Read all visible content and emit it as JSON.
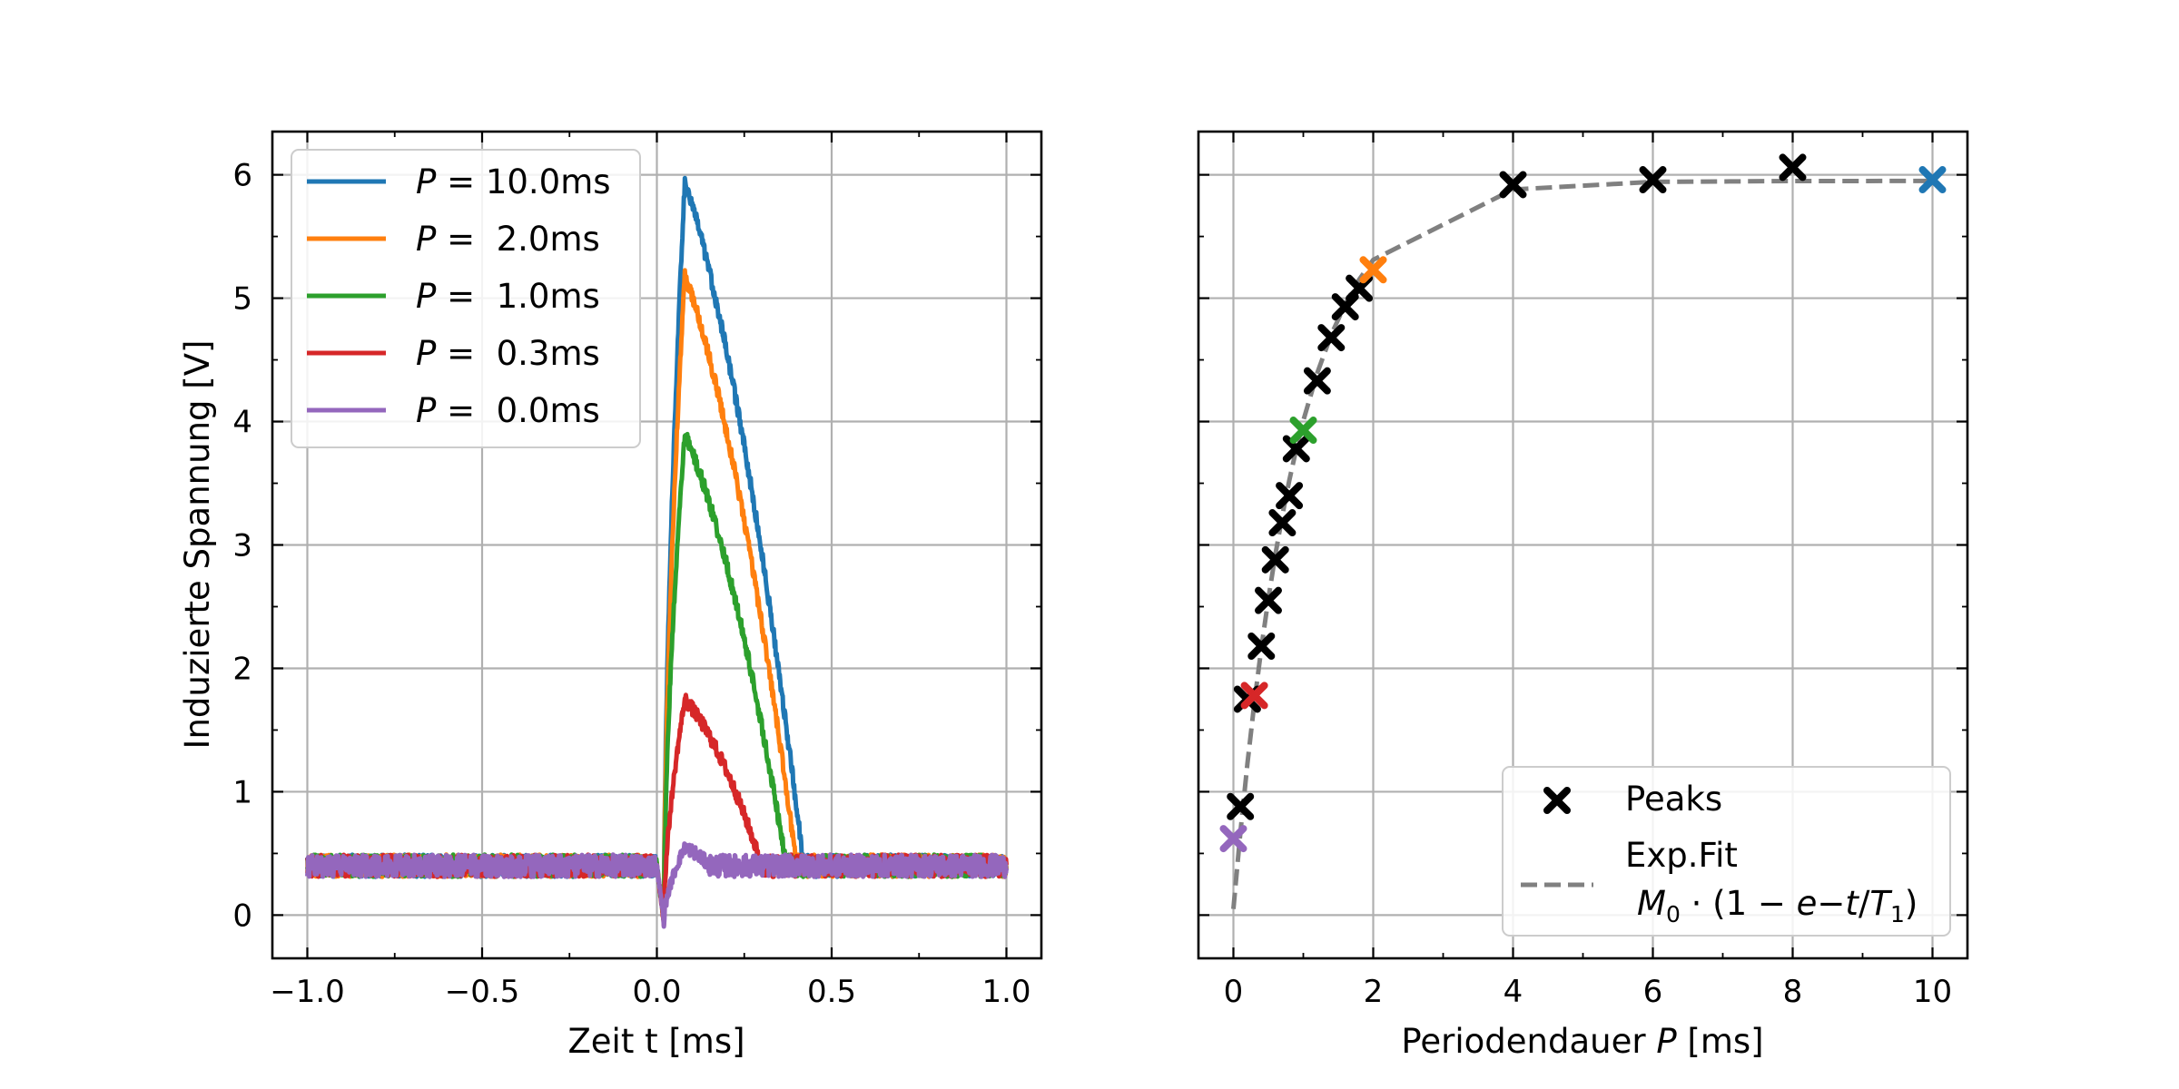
{
  "colors": {
    "blue": "#1f77b4",
    "orange": "#ff7f0e",
    "green": "#2ca02c",
    "red": "#d62728",
    "purple": "#9467bd",
    "gray": "#808080",
    "black": "#000000",
    "grid": "#b0b0b0"
  },
  "chart_data": [
    {
      "type": "line",
      "xlabel": "Zeit t [ms]",
      "ylabel": "Induzierte Spannung [V]",
      "xlim": [
        -1.1,
        1.1
      ],
      "ylim": [
        -0.35,
        6.35
      ],
      "xticks": [
        -1.0,
        -0.5,
        0.0,
        0.5,
        1.0
      ],
      "xtick_labels": [
        "−1.0",
        "−0.5",
        "0.0",
        "0.5",
        "1.0"
      ],
      "yticks": [
        0,
        1,
        2,
        3,
        4,
        5,
        6
      ],
      "ytick_labels": [
        "0",
        "1",
        "2",
        "3",
        "4",
        "5",
        "6"
      ],
      "grid": true,
      "legend_position": "top-left",
      "series": [
        {
          "name": "P = 10.0ms",
          "legend_math": "P",
          "legend_rest": " = 10.0ms",
          "color": "#1f77b4",
          "baseline": 0.4,
          "dip": -0.05,
          "peak": 5.95,
          "t_peak": 0.08,
          "t_end": 0.42
        },
        {
          "name": "P =  2.0ms",
          "legend_math": "P",
          "legend_rest": " =  2.0ms",
          "color": "#ff7f0e",
          "baseline": 0.4,
          "dip": -0.05,
          "peak": 5.2,
          "t_peak": 0.08,
          "t_end": 0.4
        },
        {
          "name": "P =  1.0ms",
          "legend_math": "P",
          "legend_rest": " =  1.0ms",
          "color": "#2ca02c",
          "baseline": 0.4,
          "dip": -0.05,
          "peak": 3.9,
          "t_peak": 0.08,
          "t_end": 0.37
        },
        {
          "name": "P =  0.3ms",
          "legend_math": "P",
          "legend_rest": " =  0.3ms",
          "color": "#d62728",
          "baseline": 0.4,
          "dip": -0.05,
          "peak": 1.75,
          "t_peak": 0.08,
          "t_end": 0.3
        },
        {
          "name": "P =  0.0ms",
          "legend_math": "P",
          "legend_rest": " =  0.0ms",
          "color": "#9467bd",
          "baseline": 0.4,
          "dip": -0.05,
          "peak": 0.55,
          "t_peak": 0.08,
          "t_end": 0.15
        }
      ]
    },
    {
      "type": "scatter",
      "xlabel_text": "Periodendauer ",
      "xlabel_math": "P",
      "xlabel_unit": " [ms]",
      "xlim": [
        -0.5,
        10.5
      ],
      "ylim": [
        -0.35,
        6.35
      ],
      "xticks": [
        0,
        2,
        4,
        6,
        8,
        10
      ],
      "xtick_labels": [
        "0",
        "2",
        "4",
        "6",
        "8",
        "10"
      ],
      "yticks": [
        0,
        1,
        2,
        3,
        4,
        5,
        6
      ],
      "grid": true,
      "legend_position": "bottom-right",
      "peaks": {
        "name": "Peaks",
        "x": [
          0.0,
          0.1,
          0.2,
          0.3,
          0.4,
          0.5,
          0.6,
          0.7,
          0.8,
          0.9,
          1.0,
          1.2,
          1.4,
          1.6,
          1.8,
          2.0,
          4.0,
          6.0,
          8.0,
          10.0
        ],
        "y": [
          0.62,
          0.88,
          1.75,
          1.78,
          2.18,
          2.55,
          2.88,
          3.18,
          3.4,
          3.78,
          3.93,
          4.33,
          4.68,
          4.93,
          5.08,
          5.23,
          5.92,
          5.96,
          6.06,
          5.96
        ],
        "colors": [
          "#9467bd",
          "#000000",
          "#000000",
          "#d62728",
          "#000000",
          "#000000",
          "#000000",
          "#000000",
          "#000000",
          "#000000",
          "#2ca02c",
          "#000000",
          "#000000",
          "#000000",
          "#000000",
          "#ff7f0e",
          "#000000",
          "#000000",
          "#000000",
          "#1f77b4"
        ]
      },
      "fit": {
        "name_line1": "Exp.Fit",
        "name_line2": "M₀ · (1 − e−t/T₁)",
        "formula_parts": [
          "M",
          "0",
          " · (1 − ",
          "e",
          "−",
          "t",
          "/",
          "T",
          "1",
          ")"
        ],
        "M0": 5.95,
        "T1": 0.9,
        "offset": 0.05,
        "x_samples": [
          0.0,
          0.1,
          0.2,
          0.3,
          0.4,
          0.5,
          0.6,
          0.7,
          0.8,
          0.9,
          1.0,
          1.2,
          1.4,
          1.6,
          1.8,
          2.0,
          4.0,
          6.0,
          8.0,
          10.0
        ]
      }
    }
  ]
}
